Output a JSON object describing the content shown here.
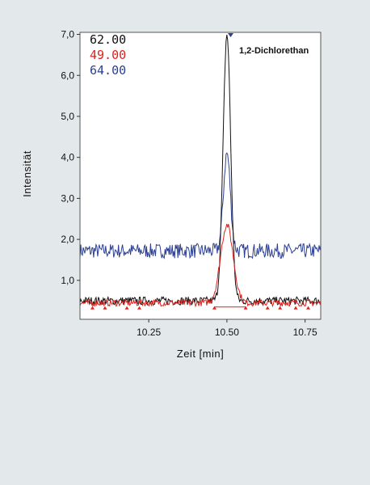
{
  "chart_data": {
    "type": "line",
    "xlabel": "Zeit [min]",
    "ylabel": "Intensität",
    "xlim": [
      10.03,
      10.8
    ],
    "ylim": [
      0.05,
      7.05
    ],
    "x_ticks": [
      10.25,
      10.5,
      10.75
    ],
    "x_tick_labels": [
      "10.25",
      "10.50",
      "10.75"
    ],
    "y_ticks": [
      1.0,
      2.0,
      3.0,
      4.0,
      5.0,
      6.0,
      7.0
    ],
    "y_tick_labels": [
      "1,0",
      "2,0",
      "3,0",
      "4,0",
      "5,0",
      "6,0",
      "7,0"
    ],
    "legend_position": "top-left",
    "peak_annotation": {
      "label": "1,2-Dichlorethan",
      "x": 10.5,
      "y": 7.0
    },
    "series": [
      {
        "name": "62.00",
        "color": "#111111",
        "baseline": 0.5,
        "noise": 0.1,
        "peak_x": 10.5,
        "peak_height": 7.0,
        "peak_sigma": 0.012
      },
      {
        "name": "49.00",
        "color": "#e0201c",
        "baseline": 0.45,
        "noise": 0.08,
        "peak_x": 10.5,
        "peak_height": 2.35,
        "peak_sigma": 0.02
      },
      {
        "name": "64.00",
        "color": "#2b3f93",
        "baseline": 1.72,
        "noise": 0.18,
        "peak_x": 10.5,
        "peak_height": 4.1,
        "peak_sigma": 0.011
      }
    ],
    "integration": {
      "color": "#e0201c",
      "baseline_x": [
        10.46,
        10.56
      ],
      "baseline_y": 0.35,
      "markers_x": [
        10.07,
        10.11,
        10.18,
        10.22,
        10.46,
        10.56,
        10.63,
        10.67,
        10.72,
        10.76
      ]
    }
  }
}
